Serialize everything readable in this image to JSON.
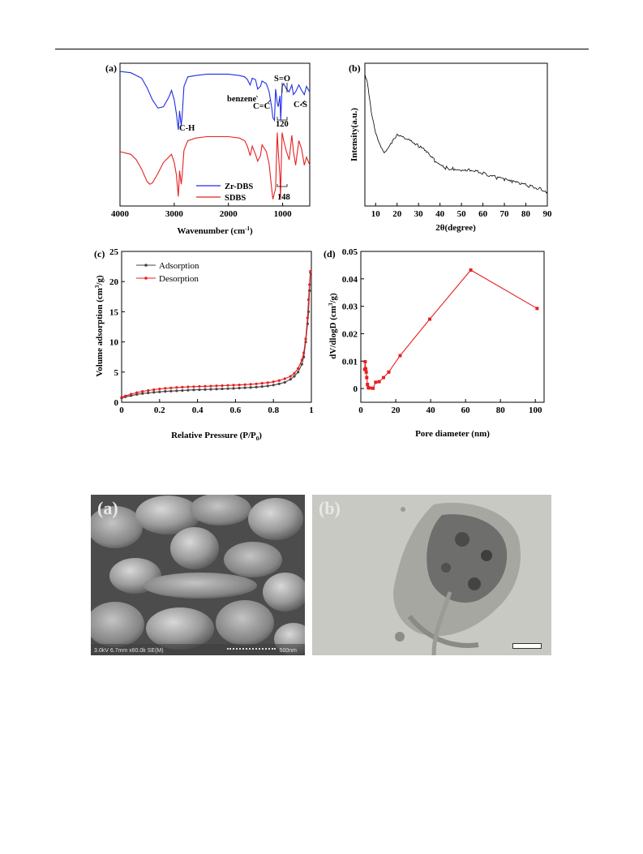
{
  "panels": {
    "a": {
      "label": "(a)"
    },
    "b": {
      "label": "(b)"
    },
    "c": {
      "label": "(c)"
    },
    "d": {
      "label": "(d)"
    },
    "sem": {
      "label": "(a)",
      "info": "3.0kV 6.7mm x60.0k SE(M)",
      "scale": "500nm"
    },
    "tem": {
      "label": "(b)"
    }
  },
  "colors": {
    "blue": "#1f2ee6",
    "red": "#e62020",
    "gray": "#444444",
    "sem_bg": "#7a7a7a",
    "tem_bg": "#c9c9c3"
  },
  "chart_data": [
    {
      "id": "a",
      "type": "line",
      "xlabel": "Wavenumber (cm-1)",
      "xlim": [
        4000,
        500
      ],
      "x_ticks": [
        4000,
        3000,
        2000,
        1000
      ],
      "x_tick_labels": [
        "4000",
        "3000",
        "2000",
        "1000"
      ],
      "y_ticks_shown": false,
      "legend": {
        "placement": "bottom-center",
        "entries": [
          "Zr-DBS",
          "SDBS"
        ]
      },
      "annotations": [
        "C-H",
        "benzene",
        "C=C",
        "S=O",
        "C-S",
        "120",
        "148"
      ],
      "series": [
        {
          "name": "Zr-DBS",
          "color": "blue",
          "x": [
            4000,
            3800,
            3600,
            3500,
            3400,
            3300,
            3200,
            3100,
            3050,
            3000,
            2960,
            2925,
            2900,
            2870,
            2855,
            2820,
            2750,
            2600,
            2400,
            2200,
            2000,
            1800,
            1700,
            1650,
            1600,
            1560,
            1500,
            1460,
            1410,
            1380,
            1300,
            1250,
            1200,
            1180,
            1150,
            1130,
            1100,
            1080,
            1050,
            1035,
            1010,
            980,
            930,
            880,
            830,
            800,
            760,
            700,
            650,
            600,
            560,
            520,
            500
          ],
          "y": [
            9.9,
            9.8,
            9.4,
            8.7,
            7.8,
            7.2,
            7.3,
            8.0,
            8.5,
            7.8,
            6.8,
            5.6,
            7.0,
            5.9,
            6.6,
            8.8,
            9.5,
            9.6,
            9.7,
            9.7,
            9.7,
            9.6,
            9.5,
            9.3,
            8.9,
            9.4,
            9.3,
            8.6,
            8.8,
            9.2,
            9.0,
            8.4,
            7.2,
            6.5,
            6.3,
            8.6,
            7.6,
            7.3,
            8.1,
            6.3,
            8.8,
            9.0,
            8.6,
            8.4,
            8.9,
            8.2,
            8.4,
            8.9,
            8.5,
            8.2,
            8.8,
            8.5,
            8.4
          ]
        },
        {
          "name": "SDBS",
          "color": "red",
          "x": [
            4000,
            3800,
            3700,
            3600,
            3500,
            3450,
            3400,
            3300,
            3200,
            3100,
            3050,
            3000,
            2960,
            2925,
            2900,
            2870,
            2855,
            2820,
            2750,
            2600,
            2400,
            2200,
            2000,
            1800,
            1700,
            1650,
            1600,
            1560,
            1500,
            1460,
            1410,
            1380,
            1300,
            1250,
            1200,
            1180,
            1130,
            1100,
            1080,
            1050,
            1040,
            1010,
            980,
            930,
            880,
            830,
            800,
            760,
            700,
            650,
            600,
            560,
            520,
            500
          ],
          "y": [
            4.0,
            3.8,
            3.4,
            2.7,
            1.8,
            1.6,
            1.7,
            2.4,
            3.2,
            3.6,
            3.8,
            3.2,
            2.3,
            0.7,
            2.6,
            1.6,
            2.2,
            4.1,
            4.8,
            5.0,
            5.1,
            5.1,
            5.1,
            5.0,
            4.8,
            4.4,
            3.7,
            4.4,
            3.8,
            3.3,
            3.7,
            4.5,
            4.0,
            3.1,
            1.2,
            0.5,
            1.3,
            5.4,
            4.0,
            2.2,
            0.6,
            5.4,
            4.8,
            4.0,
            3.4,
            5.2,
            4.0,
            3.0,
            4.8,
            4.2,
            3.0,
            3.6,
            3.2,
            3.0
          ]
        }
      ]
    },
    {
      "id": "b",
      "type": "line",
      "xlabel": "2θ(degree)",
      "ylabel": "Intensity(a.u.)",
      "xlim": [
        5,
        90
      ],
      "x_ticks": [
        10,
        20,
        30,
        40,
        50,
        60,
        70,
        80,
        90
      ],
      "y_ticks_shown": false,
      "series": [
        {
          "name": "",
          "color": "black",
          "x": [
            5,
            6,
            7,
            8,
            9,
            10,
            11,
            12,
            14,
            16,
            18,
            20,
            22,
            24,
            26,
            28,
            30,
            32,
            35,
            38,
            40,
            43,
            46,
            50,
            54,
            58,
            62,
            66,
            70,
            74,
            78,
            82,
            86,
            90
          ],
          "y": [
            9.3,
            9.0,
            8.0,
            7.0,
            6.3,
            5.7,
            5.2,
            4.8,
            4.3,
            4.6,
            5.1,
            5.5,
            5.5,
            5.3,
            5.2,
            5.0,
            4.8,
            4.6,
            4.2,
            3.8,
            3.5,
            3.4,
            3.35,
            3.3,
            3.3,
            3.15,
            2.95,
            2.8,
            2.65,
            2.5,
            2.4,
            2.25,
            2.1,
            1.9
          ]
        }
      ]
    },
    {
      "id": "c",
      "type": "line",
      "xlabel": "Relative Pressure (P/P0)",
      "ylabel": "Volume adsorption (cm3/g)",
      "xlim": [
        0,
        1
      ],
      "ylim": [
        0,
        25
      ],
      "x_ticks": [
        0,
        0.2,
        0.4,
        0.6,
        0.8,
        1
      ],
      "x_tick_labels": [
        "0",
        "0.2",
        "0.4",
        "0.6",
        "0.8",
        "1"
      ],
      "y_ticks": [
        0,
        5,
        10,
        15,
        20,
        25
      ],
      "legend": {
        "placement": "top-left",
        "entries": [
          "Adsorption",
          "Desorption"
        ]
      },
      "series": [
        {
          "name": "Adsorption",
          "color": "gray",
          "x": [
            0.0,
            0.02,
            0.05,
            0.08,
            0.11,
            0.14,
            0.17,
            0.2,
            0.23,
            0.26,
            0.29,
            0.32,
            0.35,
            0.38,
            0.41,
            0.44,
            0.47,
            0.5,
            0.53,
            0.56,
            0.59,
            0.62,
            0.65,
            0.68,
            0.71,
            0.74,
            0.77,
            0.8,
            0.83,
            0.86,
            0.89,
            0.91,
            0.93,
            0.95,
            0.96,
            0.97,
            0.98,
            0.985,
            0.99,
            0.995
          ],
          "y": [
            0.7,
            0.9,
            1.1,
            1.3,
            1.45,
            1.55,
            1.65,
            1.72,
            1.8,
            1.85,
            1.9,
            1.95,
            2.0,
            2.05,
            2.08,
            2.12,
            2.15,
            2.18,
            2.22,
            2.26,
            2.3,
            2.35,
            2.4,
            2.45,
            2.52,
            2.6,
            2.7,
            2.85,
            3.05,
            3.3,
            3.8,
            4.3,
            5.0,
            6.3,
            7.5,
            10.0,
            13.0,
            15.0,
            18.5,
            21.5
          ]
        },
        {
          "name": "Desorption",
          "color": "red",
          "x": [
            0.995,
            0.99,
            0.985,
            0.98,
            0.97,
            0.96,
            0.95,
            0.93,
            0.91,
            0.89,
            0.86,
            0.83,
            0.8,
            0.77,
            0.74,
            0.71,
            0.68,
            0.65,
            0.62,
            0.59,
            0.56,
            0.53,
            0.5,
            0.47,
            0.44,
            0.41,
            0.38,
            0.35,
            0.32,
            0.29,
            0.26,
            0.23,
            0.2,
            0.17,
            0.14,
            0.11,
            0.08,
            0.05,
            0.02,
            0.0
          ],
          "y": [
            21.7,
            19.5,
            17.0,
            14.0,
            10.5,
            8.2,
            7.0,
            5.6,
            4.8,
            4.3,
            3.9,
            3.6,
            3.4,
            3.25,
            3.15,
            3.05,
            2.98,
            2.92,
            2.88,
            2.84,
            2.8,
            2.76,
            2.72,
            2.68,
            2.65,
            2.62,
            2.58,
            2.55,
            2.5,
            2.45,
            2.38,
            2.3,
            2.2,
            2.08,
            1.95,
            1.8,
            1.6,
            1.35,
            1.05,
            0.85
          ]
        }
      ]
    },
    {
      "id": "d",
      "type": "line",
      "xlabel": "Pore diameter (nm)",
      "ylabel": "dV/dlogD (cm3/g)",
      "xlim": [
        0,
        105
      ],
      "ylim": [
        -0.005,
        0.05
      ],
      "x_ticks": [
        0,
        20,
        40,
        60,
        80,
        100
      ],
      "y_ticks": [
        0,
        0.01,
        0.02,
        0.03,
        0.04,
        0.05
      ],
      "y_tick_labels": [
        "0",
        "0.01",
        "0.02",
        "0.03",
        "0.04",
        "0.05"
      ],
      "series": [
        {
          "name": "",
          "color": "red",
          "x": [
            2.2,
            2.5,
            2.8,
            3.1,
            3.4,
            3.8,
            4.3,
            5.0,
            7.0,
            8.5,
            10.5,
            13.0,
            16.0,
            22.5,
            39.5,
            63.0,
            101.0
          ],
          "y": [
            0.007,
            0.0098,
            0.0072,
            0.006,
            0.004,
            0.0015,
            0.0003,
            0.0002,
            0.0001,
            0.0023,
            0.0025,
            0.004,
            0.006,
            0.012,
            0.0253,
            0.0432,
            0.0292
          ]
        }
      ]
    }
  ]
}
